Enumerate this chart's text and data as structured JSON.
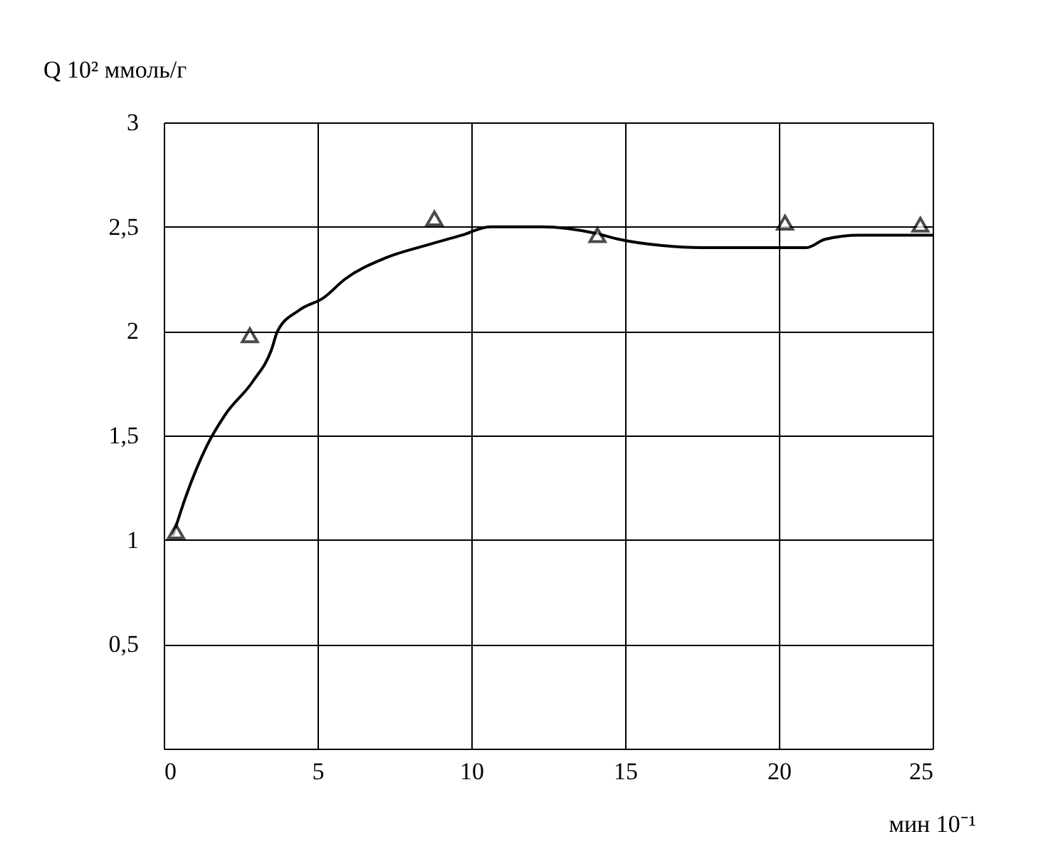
{
  "chart_data": {
    "type": "line",
    "xlabel": "мин 10⁻¹",
    "ylabel": "Q 10² ммоль/г",
    "xlim": [
      0,
      25
    ],
    "xticks": [
      0,
      5,
      10,
      15,
      20,
      25
    ],
    "ylim": [
      0,
      3
    ],
    "yticks": [
      {
        "value": 0,
        "label": null
      },
      {
        "value": 0.5,
        "label": "0,5"
      },
      1,
      {
        "value": 1.5,
        "label": "1,5"
      },
      2,
      {
        "value": 2.5,
        "label": "2,5"
      },
      3
    ],
    "grid": true,
    "line_style": "solid",
    "series": [
      {
        "color": "#000000",
        "marker": "none",
        "x": [
          0.3,
          0.7,
          1.4,
          2.0,
          2.9,
          3.5,
          3.7,
          4.4,
          5.2,
          5.9,
          7.2,
          8.5,
          9.7,
          10.6,
          12.3,
          14.0,
          14.8,
          16.2,
          17.5,
          20.9,
          21.5,
          22.6,
          25.0
        ],
        "values": [
          1.02,
          1.2,
          1.45,
          1.6,
          1.76,
          1.91,
          2.0,
          2.1,
          2.16,
          2.25,
          2.35,
          2.41,
          2.46,
          2.5,
          2.5,
          2.47,
          2.44,
          2.41,
          2.4,
          2.4,
          2.44,
          2.46,
          2.46
        ]
      },
      {
        "type": "scatter",
        "color": "#000000",
        "marker": "triangle",
        "x": [
          0.4,
          2.8,
          8.8,
          14.1,
          20.2,
          24.6
        ],
        "values": [
          1.04,
          1.98,
          2.54,
          2.46,
          2.52,
          2.51
        ]
      }
    ]
  }
}
